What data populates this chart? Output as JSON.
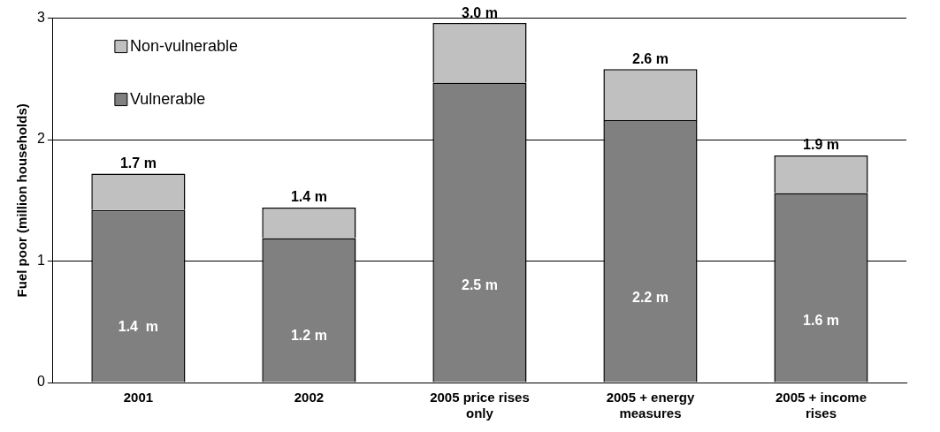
{
  "chart_data": {
    "type": "bar",
    "ylabel": "Fuel poor (million households)",
    "categories": [
      "2001",
      "2002",
      "2005 price rises only",
      "2005 + energy measures",
      "2005 + income rises"
    ],
    "stacked": true,
    "series": [
      {
        "name": "Vulnerable",
        "color": "#808080",
        "values": [
          1.42,
          1.19,
          2.47,
          2.16,
          1.56
        ],
        "value_labels": [
          "1.4  m",
          "1.2 m",
          "2.5 m",
          "2.2 m",
          "1.6 m"
        ]
      },
      {
        "name": "Non-vulnerable",
        "color": "#c0c0c0",
        "values": [
          0.3,
          0.25,
          0.49,
          0.42,
          0.31
        ]
      }
    ],
    "totals": [
      "1.7 m",
      "1.4 m",
      "3.0 m",
      "2.6 m",
      "1.9 m"
    ],
    "ylim": [
      0,
      3
    ],
    "yticks": [
      0,
      1,
      2,
      3
    ],
    "grid": "y",
    "legend": "top left"
  }
}
